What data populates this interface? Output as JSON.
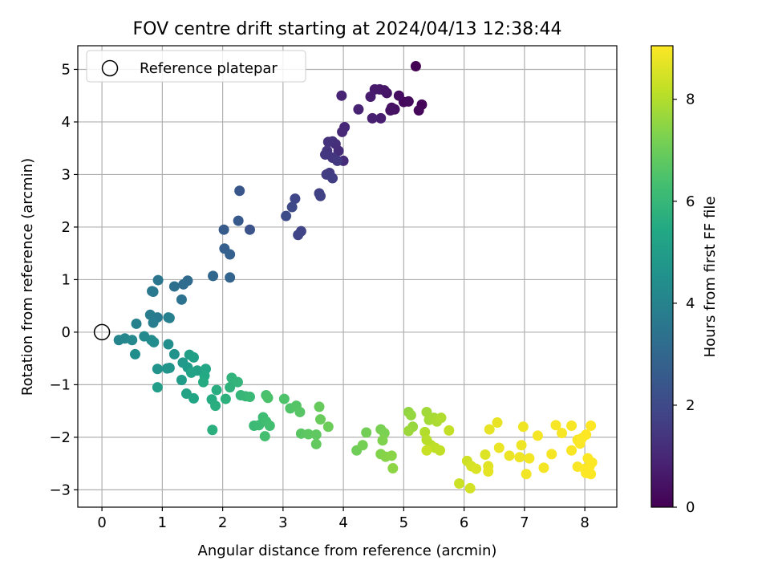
{
  "chart_data": {
    "type": "scatter",
    "title": "FOV centre drift starting at 2024/04/13 12:38:44",
    "xlabel": "Angular distance from reference (arcmin)",
    "ylabel": "Rotation from reference (arcmin)",
    "xlim": [
      -0.4,
      8.53
    ],
    "ylim": [
      -3.33,
      5.45
    ],
    "xticks": [
      0,
      1,
      2,
      3,
      4,
      5,
      6,
      7,
      8
    ],
    "yticks": [
      -3,
      -2,
      -1,
      0,
      1,
      2,
      3,
      4,
      5
    ],
    "grid": true,
    "legend": {
      "placement": "top-left",
      "entries": [
        "Reference platepar"
      ]
    },
    "reference_point": {
      "x": 0,
      "y": 0,
      "label": "Reference platepar"
    },
    "colorbar": {
      "label": "Hours from first FF file",
      "colormap": "viridis",
      "range": [
        0,
        9.05
      ],
      "ticks": [
        0,
        2,
        4,
        6,
        8
      ]
    },
    "points": [
      [
        5.2,
        5.06,
        0.0
      ],
      [
        5.3,
        4.33,
        0.1
      ],
      [
        5.25,
        4.22,
        0.15
      ],
      [
        5.0,
        4.38,
        0.2
      ],
      [
        5.08,
        4.39,
        0.25
      ],
      [
        4.92,
        4.5,
        0.3
      ],
      [
        4.8,
        4.27,
        0.35
      ],
      [
        4.85,
        4.24,
        0.4
      ],
      [
        4.78,
        4.22,
        0.45
      ],
      [
        4.72,
        4.55,
        0.5
      ],
      [
        4.68,
        4.6,
        0.55
      ],
      [
        4.6,
        4.62,
        0.6
      ],
      [
        4.52,
        4.62,
        0.65
      ],
      [
        4.45,
        4.48,
        0.7
      ],
      [
        4.62,
        4.07,
        0.75
      ],
      [
        4.48,
        4.07,
        0.8
      ],
      [
        4.25,
        4.24,
        0.85
      ],
      [
        3.97,
        4.5,
        0.9
      ],
      [
        4.02,
        3.9,
        1.0
      ],
      [
        3.98,
        3.81,
        1.05
      ],
      [
        4.0,
        3.26,
        1.1
      ],
      [
        3.92,
        3.45,
        1.15
      ],
      [
        3.87,
        3.58,
        1.2
      ],
      [
        3.82,
        3.63,
        1.25
      ],
      [
        3.75,
        3.62,
        1.3
      ],
      [
        3.73,
        3.45,
        1.35
      ],
      [
        3.7,
        3.38,
        1.4
      ],
      [
        3.82,
        3.32,
        1.45
      ],
      [
        3.9,
        3.26,
        1.5
      ],
      [
        3.77,
        3.03,
        1.55
      ],
      [
        3.72,
        3.0,
        1.6
      ],
      [
        3.82,
        2.93,
        1.65
      ],
      [
        3.6,
        2.64,
        1.7
      ],
      [
        3.62,
        2.59,
        1.75
      ],
      [
        3.3,
        1.92,
        1.8
      ],
      [
        3.25,
        1.85,
        1.85
      ],
      [
        3.2,
        2.54,
        1.9
      ],
      [
        3.15,
        2.38,
        2.0
      ],
      [
        3.05,
        2.21,
        2.1
      ],
      [
        2.45,
        1.95,
        2.3
      ],
      [
        2.28,
        2.69,
        2.4
      ],
      [
        2.26,
        2.12,
        2.5
      ],
      [
        2.02,
        1.95,
        2.6
      ],
      [
        2.03,
        1.59,
        2.7
      ],
      [
        2.12,
        1.48,
        2.8
      ],
      [
        2.12,
        1.04,
        2.9
      ],
      [
        1.84,
        1.07,
        3.0
      ],
      [
        1.42,
        0.98,
        3.1
      ],
      [
        1.35,
        0.91,
        3.2
      ],
      [
        1.2,
        0.87,
        3.3
      ],
      [
        1.32,
        0.62,
        3.4
      ],
      [
        0.93,
        0.99,
        3.5
      ],
      [
        0.83,
        0.78,
        3.6
      ],
      [
        0.85,
        0.77,
        3.65
      ],
      [
        0.92,
        0.28,
        3.7
      ],
      [
        0.8,
        0.33,
        3.75
      ],
      [
        0.85,
        0.18,
        3.8
      ],
      [
        1.1,
        0.28,
        3.85
      ],
      [
        1.12,
        0.27,
        3.9
      ],
      [
        0.57,
        0.16,
        3.95
      ],
      [
        0.28,
        -0.15,
        4.05
      ],
      [
        0.38,
        -0.12,
        4.15
      ],
      [
        0.5,
        -0.15,
        4.2
      ],
      [
        0.7,
        -0.08,
        4.25
      ],
      [
        0.82,
        -0.15,
        4.3
      ],
      [
        0.86,
        -0.19,
        4.35
      ],
      [
        0.55,
        -0.42,
        4.4
      ],
      [
        1.1,
        -0.23,
        4.45
      ],
      [
        1.2,
        -0.42,
        4.55
      ],
      [
        0.92,
        -0.7,
        4.6
      ],
      [
        1.08,
        -0.69,
        4.65
      ],
      [
        1.12,
        -0.68,
        4.7
      ],
      [
        1.34,
        -0.58,
        4.8
      ],
      [
        1.42,
        -0.67,
        4.9
      ],
      [
        1.32,
        -0.91,
        4.95
      ],
      [
        0.92,
        -1.05,
        5.0
      ],
      [
        1.45,
        -0.43,
        5.05
      ],
      [
        1.52,
        -0.48,
        5.1
      ],
      [
        1.58,
        -0.73,
        5.15
      ],
      [
        1.48,
        -0.77,
        5.2
      ],
      [
        1.4,
        -1.17,
        5.25
      ],
      [
        1.52,
        -1.26,
        5.3
      ],
      [
        1.72,
        -0.7,
        5.35
      ],
      [
        1.7,
        -0.83,
        5.45
      ],
      [
        1.68,
        -0.95,
        5.5
      ],
      [
        1.82,
        -1.28,
        5.55
      ],
      [
        1.9,
        -1.1,
        5.6
      ],
      [
        1.88,
        -1.4,
        5.65
      ],
      [
        1.83,
        -1.86,
        5.7
      ],
      [
        2.05,
        -1.27,
        5.75
      ],
      [
        2.12,
        -1.05,
        5.8
      ],
      [
        2.15,
        -0.87,
        5.85
      ],
      [
        2.25,
        -0.95,
        5.9
      ],
      [
        2.3,
        -1.2,
        5.95
      ],
      [
        2.38,
        -1.22,
        6.0
      ],
      [
        2.45,
        -1.23,
        6.05
      ],
      [
        2.52,
        -1.78,
        6.1
      ],
      [
        2.6,
        -1.77,
        6.15
      ],
      [
        2.67,
        -1.62,
        6.2
      ],
      [
        2.72,
        -1.7,
        6.25
      ],
      [
        2.78,
        -1.78,
        6.3
      ],
      [
        2.7,
        -1.98,
        6.35
      ],
      [
        2.72,
        -1.2,
        6.4
      ],
      [
        2.75,
        -1.25,
        6.45
      ],
      [
        3.02,
        -1.27,
        6.5
      ],
      [
        3.12,
        -1.45,
        6.55
      ],
      [
        3.22,
        -1.4,
        6.6
      ],
      [
        3.28,
        -1.52,
        6.65
      ],
      [
        3.3,
        -1.93,
        6.7
      ],
      [
        3.42,
        -1.94,
        6.75
      ],
      [
        3.55,
        -1.95,
        6.8
      ],
      [
        3.55,
        -2.13,
        6.85
      ],
      [
        3.6,
        -1.42,
        6.9
      ],
      [
        3.62,
        -1.66,
        6.95
      ],
      [
        3.75,
        -1.8,
        7.0
      ],
      [
        4.22,
        -2.25,
        7.05
      ],
      [
        4.38,
        -1.91,
        7.1
      ],
      [
        4.32,
        -2.15,
        7.15
      ],
      [
        4.62,
        -1.85,
        7.2
      ],
      [
        4.68,
        -1.92,
        7.25
      ],
      [
        4.65,
        -2.06,
        7.3
      ],
      [
        4.62,
        -2.32,
        7.35
      ],
      [
        4.7,
        -2.37,
        7.4
      ],
      [
        4.8,
        -2.35,
        7.45
      ],
      [
        4.82,
        -2.59,
        7.5
      ],
      [
        5.08,
        -1.52,
        7.55
      ],
      [
        5.12,
        -1.58,
        7.6
      ],
      [
        5.15,
        -1.8,
        7.65
      ],
      [
        5.08,
        -1.88,
        7.7
      ],
      [
        5.38,
        -1.52,
        7.75
      ],
      [
        5.42,
        -1.67,
        7.8
      ],
      [
        5.5,
        -1.63,
        7.85
      ],
      [
        5.55,
        -1.7,
        7.9
      ],
      [
        5.62,
        -1.63,
        7.95
      ],
      [
        5.35,
        -1.9,
        8.0
      ],
      [
        5.38,
        -2.05,
        8.05
      ],
      [
        5.45,
        -2.15,
        8.1
      ],
      [
        5.52,
        -2.2,
        8.15
      ],
      [
        5.6,
        -2.25,
        8.2
      ],
      [
        5.75,
        -1.87,
        8.25
      ],
      [
        5.38,
        -2.25,
        8.3
      ],
      [
        5.92,
        -2.88,
        8.35
      ],
      [
        6.05,
        -2.45,
        8.4
      ],
      [
        6.1,
        -2.97,
        8.45
      ],
      [
        6.12,
        -2.55,
        8.5
      ],
      [
        6.2,
        -2.6,
        8.55
      ],
      [
        6.35,
        -2.33,
        8.6
      ],
      [
        6.4,
        -2.55,
        8.65
      ],
      [
        6.4,
        -2.65,
        8.7
      ],
      [
        6.42,
        -1.85,
        8.72
      ],
      [
        6.55,
        -1.72,
        8.75
      ],
      [
        6.58,
        -2.2,
        8.78
      ],
      [
        6.75,
        -2.35,
        8.8
      ],
      [
        6.92,
        -2.38,
        8.82
      ],
      [
        6.95,
        -2.15,
        8.84
      ],
      [
        6.98,
        -1.8,
        8.86
      ],
      [
        7.03,
        -2.7,
        8.88
      ],
      [
        7.08,
        -2.4,
        8.9
      ],
      [
        7.22,
        -1.97,
        8.92
      ],
      [
        7.32,
        -2.58,
        8.93
      ],
      [
        7.45,
        -2.32,
        8.94
      ],
      [
        7.52,
        -1.77,
        8.95
      ],
      [
        7.62,
        -1.92,
        8.96
      ],
      [
        7.78,
        -1.78,
        8.97
      ],
      [
        7.78,
        -2.25,
        8.98
      ],
      [
        7.88,
        -2.56,
        8.99
      ],
      [
        7.88,
        -2.05,
        9.0
      ],
      [
        7.92,
        -2.12,
        9.01
      ],
      [
        7.95,
        -2.02,
        9.01
      ],
      [
        8.0,
        -2.6,
        9.02
      ],
      [
        8.02,
        -2.68,
        9.02
      ],
      [
        8.05,
        -2.4,
        9.03
      ],
      [
        8.08,
        -2.55,
        9.03
      ],
      [
        8.12,
        -2.48,
        9.04
      ],
      [
        8.1,
        -2.7,
        9.04
      ],
      [
        8.02,
        -1.95,
        9.05
      ],
      [
        8.1,
        -1.78,
        9.05
      ]
    ]
  }
}
